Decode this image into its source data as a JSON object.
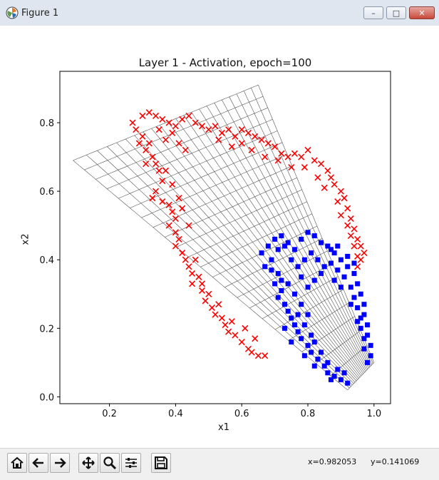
{
  "window": {
    "title": "Figure 1",
    "minimize": "–",
    "maximize": "□",
    "close": "✕"
  },
  "toolbar": {
    "buttons": [
      {
        "name": "home-icon"
      },
      {
        "name": "back-icon"
      },
      {
        "name": "forward-icon"
      },
      {
        "name": "pan-icon"
      },
      {
        "name": "zoom-icon"
      },
      {
        "name": "configure-subplots-icon"
      },
      {
        "name": "save-icon"
      }
    ],
    "coord_x": "x=0.982053",
    "coord_y": "y=0.141069"
  },
  "chart_data": {
    "type": "scatter",
    "title": "Layer 1 - Activation, epoch=100",
    "xlabel": "x1",
    "ylabel": "x2",
    "xlim": [
      0.05,
      1.05
    ],
    "ylim": [
      -0.02,
      0.95
    ],
    "xticks": [
      0.2,
      0.4,
      0.6,
      0.8,
      1.0
    ],
    "xtick_labels": [
      "0.2",
      "0.4",
      "0.6",
      "0.8",
      "1.0"
    ],
    "yticks": [
      0.0,
      0.2,
      0.4,
      0.6,
      0.8
    ],
    "ytick_labels": [
      "0.0",
      "0.2",
      "0.4",
      "0.6",
      "0.8"
    ],
    "colors": {
      "class_a": "#ff0000",
      "class_b": "#0000ff",
      "grid": "#555555"
    },
    "series": [
      {
        "marker": "x",
        "color": "#ff0000",
        "points": [
          [
            0.27,
            0.8
          ],
          [
            0.28,
            0.78
          ],
          [
            0.3,
            0.82
          ],
          [
            0.32,
            0.83
          ],
          [
            0.34,
            0.82
          ],
          [
            0.36,
            0.81
          ],
          [
            0.38,
            0.8
          ],
          [
            0.4,
            0.79
          ],
          [
            0.42,
            0.81
          ],
          [
            0.44,
            0.82
          ],
          [
            0.46,
            0.8
          ],
          [
            0.48,
            0.79
          ],
          [
            0.5,
            0.78
          ],
          [
            0.52,
            0.79
          ],
          [
            0.54,
            0.77
          ],
          [
            0.56,
            0.78
          ],
          [
            0.58,
            0.76
          ],
          [
            0.6,
            0.78
          ],
          [
            0.62,
            0.77
          ],
          [
            0.64,
            0.76
          ],
          [
            0.66,
            0.75
          ],
          [
            0.68,
            0.74
          ],
          [
            0.7,
            0.73
          ],
          [
            0.72,
            0.71
          ],
          [
            0.74,
            0.7
          ],
          [
            0.76,
            0.71
          ],
          [
            0.78,
            0.7
          ],
          [
            0.8,
            0.72
          ],
          [
            0.82,
            0.69
          ],
          [
            0.84,
            0.68
          ],
          [
            0.86,
            0.66
          ],
          [
            0.87,
            0.64
          ],
          [
            0.88,
            0.62
          ],
          [
            0.9,
            0.6
          ],
          [
            0.91,
            0.58
          ],
          [
            0.92,
            0.55
          ],
          [
            0.93,
            0.52
          ],
          [
            0.94,
            0.49
          ],
          [
            0.95,
            0.46
          ],
          [
            0.96,
            0.44
          ],
          [
            0.97,
            0.42
          ],
          [
            0.96,
            0.4
          ],
          [
            0.95,
            0.38
          ],
          [
            0.3,
            0.76
          ],
          [
            0.32,
            0.74
          ],
          [
            0.31,
            0.72
          ],
          [
            0.33,
            0.7
          ],
          [
            0.34,
            0.68
          ],
          [
            0.35,
            0.66
          ],
          [
            0.36,
            0.63
          ],
          [
            0.34,
            0.6
          ],
          [
            0.33,
            0.58
          ],
          [
            0.36,
            0.57
          ],
          [
            0.38,
            0.56
          ],
          [
            0.39,
            0.54
          ],
          [
            0.4,
            0.52
          ],
          [
            0.38,
            0.5
          ],
          [
            0.4,
            0.48
          ],
          [
            0.41,
            0.46
          ],
          [
            0.4,
            0.44
          ],
          [
            0.42,
            0.42
          ],
          [
            0.43,
            0.4
          ],
          [
            0.44,
            0.38
          ],
          [
            0.45,
            0.36
          ],
          [
            0.47,
            0.35
          ],
          [
            0.45,
            0.33
          ],
          [
            0.48,
            0.31
          ],
          [
            0.5,
            0.3
          ],
          [
            0.49,
            0.28
          ],
          [
            0.51,
            0.26
          ],
          [
            0.52,
            0.24
          ],
          [
            0.54,
            0.23
          ],
          [
            0.55,
            0.21
          ],
          [
            0.56,
            0.19
          ],
          [
            0.58,
            0.18
          ],
          [
            0.6,
            0.16
          ],
          [
            0.62,
            0.14
          ],
          [
            0.63,
            0.13
          ],
          [
            0.65,
            0.12
          ],
          [
            0.67,
            0.12
          ],
          [
            0.29,
            0.74
          ],
          [
            0.35,
            0.78
          ],
          [
            0.37,
            0.75
          ],
          [
            0.39,
            0.77
          ],
          [
            0.41,
            0.74
          ],
          [
            0.43,
            0.72
          ],
          [
            0.31,
            0.68
          ],
          [
            0.37,
            0.66
          ],
          [
            0.39,
            0.62
          ],
          [
            0.41,
            0.58
          ],
          [
            0.42,
            0.55
          ],
          [
            0.44,
            0.5
          ],
          [
            0.46,
            0.4
          ],
          [
            0.48,
            0.33
          ],
          [
            0.53,
            0.27
          ],
          [
            0.57,
            0.22
          ],
          [
            0.61,
            0.2
          ],
          [
            0.64,
            0.17
          ],
          [
            0.53,
            0.75
          ],
          [
            0.57,
            0.73
          ],
          [
            0.6,
            0.74
          ],
          [
            0.63,
            0.72
          ],
          [
            0.67,
            0.7
          ],
          [
            0.71,
            0.69
          ],
          [
            0.75,
            0.67
          ],
          [
            0.79,
            0.67
          ],
          [
            0.83,
            0.64
          ],
          [
            0.85,
            0.61
          ],
          [
            0.89,
            0.57
          ],
          [
            0.9,
            0.53
          ],
          [
            0.92,
            0.5
          ],
          [
            0.93,
            0.47
          ],
          [
            0.94,
            0.44
          ],
          [
            0.95,
            0.41
          ]
        ]
      },
      {
        "marker": "s",
        "color": "#0000ff",
        "points": [
          [
            0.66,
            0.42
          ],
          [
            0.68,
            0.44
          ],
          [
            0.7,
            0.46
          ],
          [
            0.72,
            0.47
          ],
          [
            0.74,
            0.45
          ],
          [
            0.76,
            0.43
          ],
          [
            0.78,
            0.46
          ],
          [
            0.8,
            0.48
          ],
          [
            0.82,
            0.47
          ],
          [
            0.84,
            0.45
          ],
          [
            0.86,
            0.44
          ],
          [
            0.88,
            0.42
          ],
          [
            0.9,
            0.4
          ],
          [
            0.92,
            0.38
          ],
          [
            0.94,
            0.36
          ],
          [
            0.95,
            0.33
          ],
          [
            0.96,
            0.3
          ],
          [
            0.97,
            0.27
          ],
          [
            0.97,
            0.24
          ],
          [
            0.98,
            0.21
          ],
          [
            0.98,
            0.18
          ],
          [
            0.99,
            0.15
          ],
          [
            0.99,
            0.12
          ],
          [
            0.98,
            0.1
          ],
          [
            0.67,
            0.38
          ],
          [
            0.69,
            0.37
          ],
          [
            0.71,
            0.36
          ],
          [
            0.7,
            0.33
          ],
          [
            0.72,
            0.31
          ],
          [
            0.71,
            0.29
          ],
          [
            0.73,
            0.27
          ],
          [
            0.74,
            0.25
          ],
          [
            0.75,
            0.23
          ],
          [
            0.76,
            0.21
          ],
          [
            0.77,
            0.19
          ],
          [
            0.78,
            0.17
          ],
          [
            0.8,
            0.15
          ],
          [
            0.81,
            0.13
          ],
          [
            0.83,
            0.11
          ],
          [
            0.85,
            0.09
          ],
          [
            0.86,
            0.07
          ],
          [
            0.88,
            0.06
          ],
          [
            0.9,
            0.05
          ],
          [
            0.92,
            0.04
          ],
          [
            0.73,
            0.44
          ],
          [
            0.75,
            0.4
          ],
          [
            0.77,
            0.38
          ],
          [
            0.79,
            0.4
          ],
          [
            0.81,
            0.42
          ],
          [
            0.83,
            0.4
          ],
          [
            0.85,
            0.38
          ],
          [
            0.87,
            0.39
          ],
          [
            0.89,
            0.37
          ],
          [
            0.91,
            0.35
          ],
          [
            0.93,
            0.32
          ],
          [
            0.94,
            0.29
          ],
          [
            0.95,
            0.26
          ],
          [
            0.96,
            0.23
          ],
          [
            0.96,
            0.2
          ],
          [
            0.97,
            0.17
          ],
          [
            0.74,
            0.33
          ],
          [
            0.76,
            0.3
          ],
          [
            0.78,
            0.27
          ],
          [
            0.77,
            0.24
          ],
          [
            0.79,
            0.21
          ],
          [
            0.81,
            0.18
          ],
          [
            0.82,
            0.16
          ],
          [
            0.84,
            0.13
          ],
          [
            0.86,
            0.1
          ],
          [
            0.89,
            0.08
          ],
          [
            0.78,
            0.35
          ],
          [
            0.8,
            0.32
          ],
          [
            0.82,
            0.34
          ],
          [
            0.84,
            0.36
          ],
          [
            0.88,
            0.34
          ],
          [
            0.9,
            0.32
          ],
          [
            0.93,
            0.27
          ],
          [
            0.95,
            0.22
          ],
          [
            0.97,
            0.14
          ],
          [
            0.91,
            0.07
          ],
          [
            0.8,
            0.24
          ],
          [
            0.79,
            0.12
          ],
          [
            0.82,
            0.09
          ],
          [
            0.87,
            0.05
          ],
          [
            0.75,
            0.16
          ],
          [
            0.73,
            0.2
          ],
          [
            0.72,
            0.34
          ],
          [
            0.69,
            0.4
          ],
          [
            0.71,
            0.43
          ],
          [
            0.87,
            0.43
          ],
          [
            0.89,
            0.44
          ],
          [
            0.92,
            0.41
          ],
          [
            0.94,
            0.39
          ]
        ]
      }
    ]
  }
}
